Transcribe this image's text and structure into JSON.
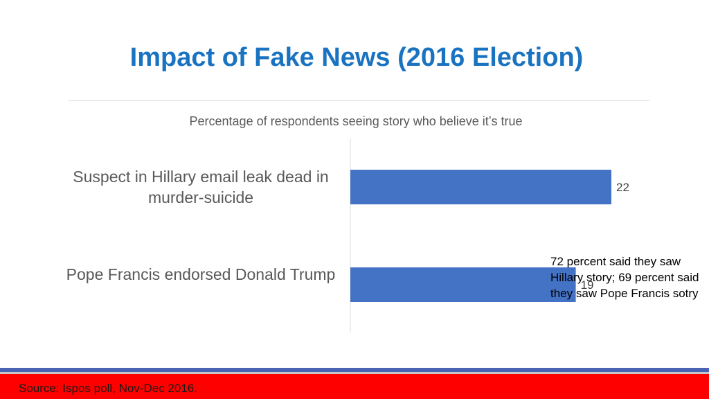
{
  "title": "Impact of Fake News (2016 Election)",
  "colors": {
    "title": "#1a73c1",
    "bar": "#4472c4",
    "footer": "#ff0000",
    "stripe": "#4a63b5"
  },
  "chart_data": {
    "type": "bar",
    "orientation": "horizontal",
    "title": "Percentage of respondents seeing story who believe it’s true",
    "categories": [
      "Suspect in Hillary email leak dead in murder-suicide",
      "Pope Francis endorsed Donald Trump"
    ],
    "values": [
      22,
      19
    ],
    "data_labels": [
      "22",
      "19"
    ],
    "xlim": [
      0,
      25
    ],
    "grid": false
  },
  "annotation": "72 percent said they saw Hillary story; 69 percent said they saw Pope Francis sotry",
  "footer": {
    "source": "Source: Ispos poll, Nov-Dec 2016."
  }
}
